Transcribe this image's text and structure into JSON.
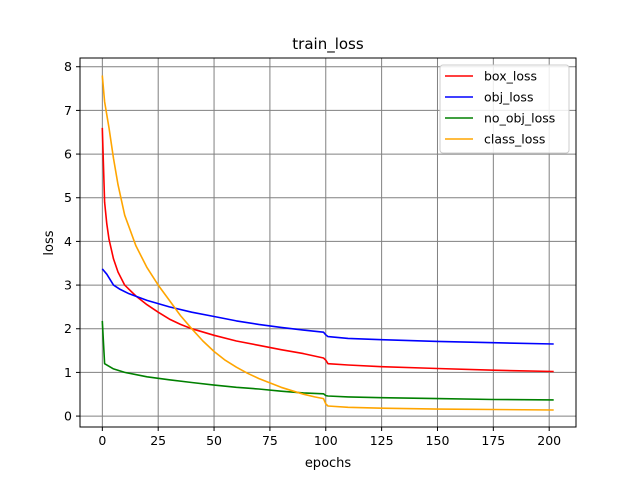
{
  "chart_data": {
    "type": "line",
    "title": "train_loss",
    "xlabel": "epochs",
    "ylabel": "loss",
    "xlim": [
      -10,
      212
    ],
    "ylim": [
      -0.25,
      8.2
    ],
    "xticks": [
      0,
      25,
      50,
      75,
      100,
      125,
      150,
      175,
      200
    ],
    "yticks": [
      0,
      1,
      2,
      3,
      4,
      5,
      6,
      7,
      8
    ],
    "grid": true,
    "legend_position": "top-right",
    "series": [
      {
        "name": "box_loss",
        "color": "#ff0000",
        "points": [
          [
            0,
            6.6
          ],
          [
            1,
            4.9
          ],
          [
            2,
            4.4
          ],
          [
            3,
            4.05
          ],
          [
            5,
            3.6
          ],
          [
            7,
            3.3
          ],
          [
            10,
            3.0
          ],
          [
            15,
            2.75
          ],
          [
            20,
            2.55
          ],
          [
            25,
            2.38
          ],
          [
            30,
            2.22
          ],
          [
            35,
            2.1
          ],
          [
            40,
            2.0
          ],
          [
            50,
            1.85
          ],
          [
            60,
            1.72
          ],
          [
            70,
            1.62
          ],
          [
            80,
            1.52
          ],
          [
            90,
            1.43
          ],
          [
            99,
            1.33
          ],
          [
            100,
            1.28
          ],
          [
            101,
            1.2
          ],
          [
            110,
            1.17
          ],
          [
            125,
            1.13
          ],
          [
            150,
            1.09
          ],
          [
            175,
            1.05
          ],
          [
            202,
            1.02
          ]
        ]
      },
      {
        "name": "obj_loss",
        "color": "#0000ff",
        "points": [
          [
            0,
            3.37
          ],
          [
            2,
            3.25
          ],
          [
            5,
            3.0
          ],
          [
            8,
            2.9
          ],
          [
            12,
            2.8
          ],
          [
            20,
            2.65
          ],
          [
            30,
            2.5
          ],
          [
            40,
            2.38
          ],
          [
            50,
            2.28
          ],
          [
            60,
            2.18
          ],
          [
            70,
            2.1
          ],
          [
            80,
            2.03
          ],
          [
            90,
            1.97
          ],
          [
            99,
            1.92
          ],
          [
            100,
            1.86
          ],
          [
            101,
            1.82
          ],
          [
            110,
            1.78
          ],
          [
            125,
            1.75
          ],
          [
            150,
            1.71
          ],
          [
            175,
            1.68
          ],
          [
            202,
            1.65
          ]
        ]
      },
      {
        "name": "no_obj_loss",
        "color": "#008000",
        "points": [
          [
            0,
            2.18
          ],
          [
            1,
            1.2
          ],
          [
            5,
            1.08
          ],
          [
            10,
            1.0
          ],
          [
            20,
            0.9
          ],
          [
            30,
            0.83
          ],
          [
            40,
            0.77
          ],
          [
            50,
            0.71
          ],
          [
            60,
            0.66
          ],
          [
            70,
            0.62
          ],
          [
            80,
            0.57
          ],
          [
            90,
            0.53
          ],
          [
            99,
            0.51
          ],
          [
            100,
            0.47
          ],
          [
            101,
            0.46
          ],
          [
            110,
            0.44
          ],
          [
            125,
            0.42
          ],
          [
            150,
            0.4
          ],
          [
            175,
            0.38
          ],
          [
            202,
            0.37
          ]
        ]
      },
      {
        "name": "class_loss",
        "color": "#ffa500",
        "points": [
          [
            0,
            7.8
          ],
          [
            1,
            7.2
          ],
          [
            3,
            6.6
          ],
          [
            5,
            5.9
          ],
          [
            7,
            5.3
          ],
          [
            10,
            4.6
          ],
          [
            15,
            3.9
          ],
          [
            20,
            3.4
          ],
          [
            25,
            3.0
          ],
          [
            30,
            2.65
          ],
          [
            35,
            2.3
          ],
          [
            40,
            2.0
          ],
          [
            45,
            1.72
          ],
          [
            50,
            1.48
          ],
          [
            55,
            1.28
          ],
          [
            60,
            1.12
          ],
          [
            65,
            0.98
          ],
          [
            70,
            0.86
          ],
          [
            75,
            0.76
          ],
          [
            80,
            0.66
          ],
          [
            85,
            0.58
          ],
          [
            90,
            0.5
          ],
          [
            95,
            0.44
          ],
          [
            99,
            0.4
          ],
          [
            100,
            0.28
          ],
          [
            101,
            0.23
          ],
          [
            110,
            0.2
          ],
          [
            125,
            0.18
          ],
          [
            150,
            0.16
          ],
          [
            175,
            0.15
          ],
          [
            202,
            0.14
          ]
        ]
      }
    ]
  }
}
